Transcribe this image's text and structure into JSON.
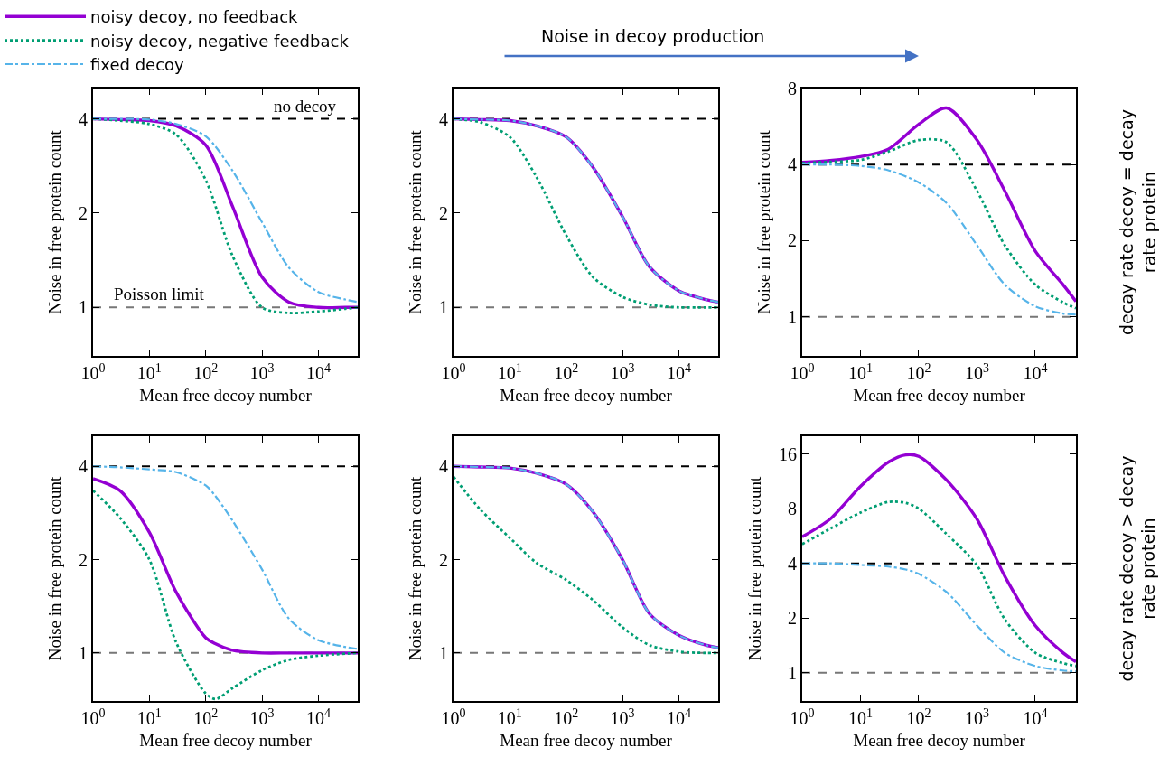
{
  "chart_data": [
    {
      "type": "line",
      "xlabel": "Mean free decoy number",
      "ylabel": "Noise in free protein count",
      "log": "xy",
      "grid": false,
      "legend": "top left",
      "xlim": [
        1,
        50000
      ],
      "ylim": [
        0.7,
        5
      ],
      "xticks": [
        {
          "value": 1,
          "label": "10$^{0}$"
        },
        {
          "value": 10,
          "label": "10$^{1}$"
        },
        {
          "value": 100,
          "label": "10$^{2}$"
        },
        {
          "value": 1000,
          "label": "10$^{3}$"
        },
        {
          "value": 10000,
          "label": "10$^{4}$"
        }
      ],
      "yticks": [
        1,
        2,
        4
      ],
      "x": [
        1,
        3,
        10,
        30,
        100,
        300,
        1000,
        3000,
        10000,
        30000,
        50000
      ],
      "series": [
        {
          "name": "noisy decoy, no feedback",
          "color": "#9400d3",
          "line_style": "solid",
          "values": [
            4.0,
            3.98,
            3.95,
            3.8,
            3.3,
            2.1,
            1.25,
            1.04,
            1.0,
            1.0,
            1.0
          ]
        },
        {
          "name": "noisy decoy, negative feedback",
          "color": "#009e73",
          "line_style": "dotted",
          "values": [
            4.0,
            3.95,
            3.85,
            3.56,
            2.55,
            1.46,
            1.0,
            0.96,
            0.97,
            0.99,
            1.0
          ]
        },
        {
          "name": "fixed decoy",
          "color": "#56b4e9",
          "line_style": "dashdot",
          "values": [
            4.0,
            4.0,
            3.98,
            3.85,
            3.52,
            2.73,
            1.87,
            1.34,
            1.12,
            1.06,
            1.04
          ]
        }
      ],
      "ref_lines": [
        {
          "axis": "y",
          "value": 4,
          "label": "no decoy",
          "color": "#000000",
          "line_style": "dashed"
        },
        {
          "axis": "y",
          "value": 1,
          "label": "Poisson limit",
          "color": "#777777",
          "line_style": "dashed"
        }
      ]
    },
    {
      "type": "line",
      "xlabel": "Mean free decoy number",
      "ylabel": "Noise in free protein count",
      "log": "xy",
      "grid": false,
      "xlim": [
        1,
        50000
      ],
      "ylim": [
        0.7,
        5
      ],
      "xticks": [
        {
          "value": 1,
          "label": "10$^{0}$"
        },
        {
          "value": 10,
          "label": "10$^{1}$"
        },
        {
          "value": 100,
          "label": "10$^{2}$"
        },
        {
          "value": 1000,
          "label": "10$^{3}$"
        },
        {
          "value": 10000,
          "label": "10$^{4}$"
        }
      ],
      "yticks": [
        1,
        2,
        4
      ],
      "x": [
        1,
        3,
        10,
        30,
        100,
        300,
        1000,
        3000,
        10000,
        30000,
        50000
      ],
      "series": [
        {
          "color": "#9400d3",
          "line_style": "solid",
          "values": [
            4.0,
            3.98,
            3.95,
            3.8,
            3.5,
            2.8,
            1.95,
            1.35,
            1.13,
            1.06,
            1.04
          ]
        },
        {
          "color": "#009e73",
          "line_style": "dotted",
          "values": [
            4.0,
            3.9,
            3.5,
            2.6,
            1.7,
            1.25,
            1.08,
            1.02,
            1.0,
            1.0,
            1.0
          ]
        },
        {
          "color": "#56b4e9",
          "line_style": "dashdot",
          "values": [
            4.0,
            3.98,
            3.95,
            3.8,
            3.5,
            2.8,
            1.95,
            1.35,
            1.13,
            1.06,
            1.04
          ]
        }
      ],
      "ref_lines": [
        {
          "axis": "y",
          "value": 4,
          "color": "#000000",
          "line_style": "dashed"
        },
        {
          "axis": "y",
          "value": 1,
          "color": "#777777",
          "line_style": "dashed"
        }
      ],
      "annotations": [
        "Noise in decoy production"
      ]
    },
    {
      "type": "line",
      "xlabel": "Mean free decoy number",
      "ylabel": "Noise in free protein count",
      "log": "xy",
      "grid": false,
      "xlim": [
        1,
        50000
      ],
      "ylim": [
        0.7,
        8
      ],
      "xticks": [
        {
          "value": 1,
          "label": "10$^{0}$"
        },
        {
          "value": 10,
          "label": "10$^{1}$"
        },
        {
          "value": 100,
          "label": "10$^{2}$"
        },
        {
          "value": 1000,
          "label": "10$^{3}$"
        },
        {
          "value": 10000,
          "label": "10$^{4}$"
        }
      ],
      "yticks": [
        1,
        2,
        4,
        8
      ],
      "x": [
        1,
        3,
        10,
        30,
        100,
        300,
        1000,
        3000,
        10000,
        30000,
        50000
      ],
      "series": [
        {
          "color": "#9400d3",
          "line_style": "solid",
          "values": [
            4.08,
            4.15,
            4.3,
            4.6,
            5.77,
            6.7,
            5.0,
            3.15,
            1.82,
            1.34,
            1.15
          ]
        },
        {
          "color": "#009e73",
          "line_style": "dotted",
          "values": [
            4.05,
            4.1,
            4.17,
            4.5,
            5.0,
            4.9,
            3.15,
            1.92,
            1.34,
            1.14,
            1.08
          ]
        },
        {
          "color": "#56b4e9",
          "line_style": "dashdot",
          "values": [
            4.0,
            4.0,
            3.95,
            3.8,
            3.4,
            2.82,
            1.92,
            1.34,
            1.1,
            1.03,
            1.02
          ]
        }
      ],
      "ref_lines": [
        {
          "axis": "y",
          "value": 4,
          "color": "#000000",
          "line_style": "dashed"
        },
        {
          "axis": "y",
          "value": 1,
          "color": "#777777",
          "line_style": "dashed"
        }
      ],
      "annotations": [
        "decay rate decoy = decay rate protein"
      ]
    },
    {
      "type": "line",
      "xlabel": "Mean free decoy number",
      "ylabel": "Noise in free protein count",
      "log": "xy",
      "grid": false,
      "xlim": [
        1,
        50000
      ],
      "ylim": [
        0.7,
        5
      ],
      "xticks": [
        {
          "value": 1,
          "label": "10$^{0}$"
        },
        {
          "value": 10,
          "label": "10$^{1}$"
        },
        {
          "value": 100,
          "label": "10$^{2}$"
        },
        {
          "value": 1000,
          "label": "10$^{3}$"
        },
        {
          "value": 10000,
          "label": "10$^{4}$"
        }
      ],
      "yticks": [
        1,
        2,
        4
      ],
      "x": [
        1,
        3,
        10,
        30,
        100,
        150,
        300,
        1000,
        3000,
        10000,
        50000
      ],
      "series": [
        {
          "color": "#9400d3",
          "line_style": "solid",
          "values": [
            3.65,
            3.34,
            2.45,
            1.57,
            1.12,
            1.07,
            1.02,
            1.0,
            1.0,
            1.0,
            1.0
          ]
        },
        {
          "color": "#009e73",
          "line_style": "dotted",
          "values": [
            3.34,
            2.73,
            2.0,
            1.08,
            0.74,
            0.71,
            0.77,
            0.88,
            0.95,
            0.98,
            1.0
          ]
        },
        {
          "color": "#56b4e9",
          "line_style": "dashdot",
          "values": [
            4.0,
            3.97,
            3.91,
            3.83,
            3.47,
            3.2,
            2.67,
            1.86,
            1.29,
            1.1,
            1.03
          ]
        }
      ],
      "ref_lines": [
        {
          "axis": "y",
          "value": 4,
          "color": "#000000",
          "line_style": "dashed"
        },
        {
          "axis": "y",
          "value": 1,
          "color": "#777777",
          "line_style": "dashed"
        }
      ]
    },
    {
      "type": "line",
      "xlabel": "Mean free decoy number",
      "ylabel": "Noise in free protein count",
      "log": "xy",
      "grid": false,
      "xlim": [
        1,
        50000
      ],
      "ylim": [
        0.7,
        5
      ],
      "xticks": [
        {
          "value": 1,
          "label": "10$^{0}$"
        },
        {
          "value": 10,
          "label": "10$^{1}$"
        },
        {
          "value": 100,
          "label": "10$^{2}$"
        },
        {
          "value": 1000,
          "label": "10$^{3}$"
        },
        {
          "value": 10000,
          "label": "10$^{4}$"
        }
      ],
      "yticks": [
        1,
        2,
        4
      ],
      "x": [
        1,
        3,
        10,
        30,
        100,
        300,
        1000,
        3000,
        10000,
        30000,
        50000
      ],
      "series": [
        {
          "color": "#9400d3",
          "line_style": "solid",
          "values": [
            4.0,
            3.98,
            3.95,
            3.8,
            3.5,
            2.85,
            2.0,
            1.34,
            1.14,
            1.06,
            1.04
          ]
        },
        {
          "color": "#009e73",
          "line_style": "dotted",
          "values": [
            3.7,
            2.9,
            2.35,
            1.95,
            1.72,
            1.48,
            1.21,
            1.06,
            1.01,
            1.0,
            1.0
          ]
        },
        {
          "color": "#56b4e9",
          "line_style": "dashdot",
          "values": [
            4.0,
            3.98,
            3.95,
            3.8,
            3.5,
            2.85,
            2.0,
            1.34,
            1.14,
            1.06,
            1.04
          ]
        }
      ],
      "ref_lines": [
        {
          "axis": "y",
          "value": 4,
          "color": "#000000",
          "line_style": "dashed"
        },
        {
          "axis": "y",
          "value": 1,
          "color": "#777777",
          "line_style": "dashed"
        }
      ]
    },
    {
      "type": "line",
      "xlabel": "Mean free decoy number",
      "ylabel": "Noise in free protein count",
      "log": "xy",
      "grid": false,
      "xlim": [
        1,
        50000
      ],
      "ylim": [
        0.7,
        20
      ],
      "xticks": [
        {
          "value": 1,
          "label": "10$^{0}$"
        },
        {
          "value": 10,
          "label": "10$^{1}$"
        },
        {
          "value": 100,
          "label": "10$^{2}$"
        },
        {
          "value": 1000,
          "label": "10$^{3}$"
        },
        {
          "value": 10000,
          "label": "10$^{4}$"
        }
      ],
      "yticks": [
        1,
        2,
        4,
        8,
        16
      ],
      "x": [
        1,
        3,
        10,
        30,
        60,
        100,
        300,
        1000,
        3000,
        10000,
        30000,
        50000
      ],
      "series": [
        {
          "color": "#9400d3",
          "line_style": "solid",
          "values": [
            5.6,
            7.0,
            10.6,
            14.4,
            15.8,
            15.5,
            11.5,
            7.0,
            3.4,
            1.82,
            1.29,
            1.15
          ]
        },
        {
          "color": "#009e73",
          "line_style": "dotted",
          "values": [
            5.1,
            6.2,
            7.6,
            8.7,
            8.6,
            8.0,
            5.8,
            3.9,
            1.97,
            1.29,
            1.13,
            1.09
          ]
        },
        {
          "color": "#56b4e9",
          "line_style": "dashdot",
          "values": [
            4.0,
            4.0,
            3.92,
            3.84,
            3.7,
            3.5,
            2.78,
            1.82,
            1.29,
            1.09,
            1.03,
            1.02
          ]
        }
      ],
      "ref_lines": [
        {
          "axis": "y",
          "value": 4,
          "color": "#000000",
          "line_style": "dashed"
        },
        {
          "axis": "y",
          "value": 1,
          "color": "#777777",
          "line_style": "dashed"
        }
      ],
      "annotations": [
        "decay rate decoy > decay rate protein"
      ]
    }
  ]
}
